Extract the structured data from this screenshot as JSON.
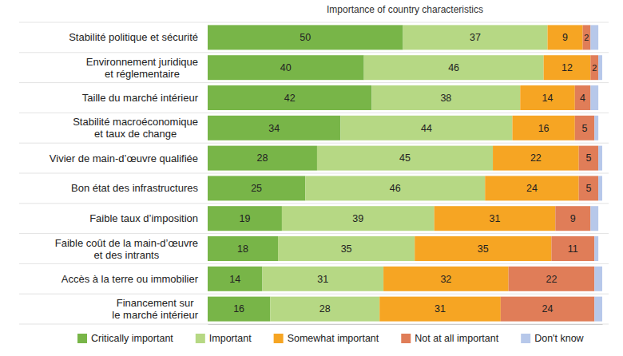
{
  "chart_data": {
    "type": "bar",
    "orientation": "horizontal",
    "stacked": true,
    "data_labels": true,
    "tick_labels": "y",
    "title": "Importance of country characteristics",
    "categories": [
      "Stabilité politique et sécurité",
      "Environnement juridique\net réglementaire",
      "Taille du marché intérieur",
      "Stabilité macroéconomique\net taux de change",
      "Vivier de main-d’œuvre qualifiée",
      "Bon état des infrastructures",
      "Faible taux d’imposition",
      "Faible coût de la main-d’œuvre\net des intrants",
      "Accès à la terre ou immobilier",
      "Financement sur\nle marché intérieur"
    ],
    "xlim": [
      0,
      101
    ],
    "legend": "bottom",
    "series": [
      {
        "name": "Critically important",
        "color": "#78b548",
        "values": [
          50,
          40,
          42,
          34,
          28,
          25,
          19,
          18,
          14,
          16
        ]
      },
      {
        "name": "Important",
        "color": "#b6d884",
        "values": [
          37,
          46,
          38,
          44,
          45,
          46,
          39,
          35,
          31,
          28
        ]
      },
      {
        "name": "Somewhat important",
        "color": "#f6a523",
        "values": [
          9,
          12,
          14,
          16,
          22,
          24,
          31,
          35,
          32,
          31
        ]
      },
      {
        "name": "Not at all important",
        "color": "#e07d58",
        "values": [
          2,
          2,
          4,
          5,
          5,
          5,
          9,
          11,
          22,
          24
        ]
      },
      {
        "name": "Don't know",
        "color": "#b7c8ea",
        "data_labels": false,
        "values": [
          2,
          1,
          2,
          1,
          1,
          1,
          2,
          1,
          2,
          2
        ]
      }
    ]
  }
}
